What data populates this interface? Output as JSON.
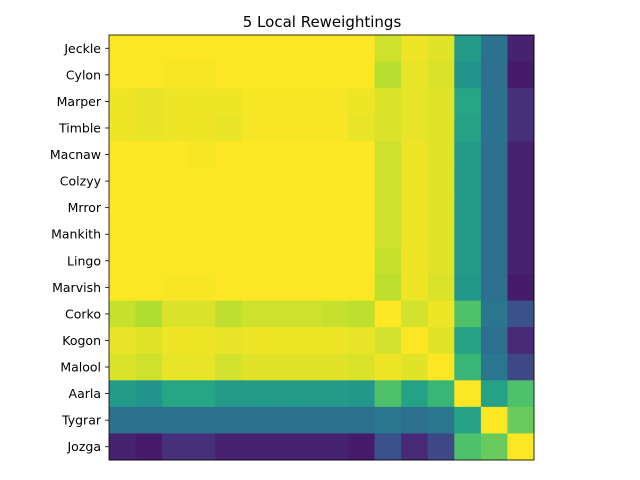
{
  "chart_data": {
    "type": "heatmap",
    "title": "5 Local Reweightings",
    "labels": [
      "Jeckle",
      "Cylon",
      "Marper",
      "Timble",
      "Macnaw",
      "Colzyy",
      "Mrror",
      "Mankith",
      "Lingo",
      "Marvish",
      "Corko",
      "Kogon",
      "Malool",
      "Aarla",
      "Tygrar",
      "Jozga"
    ],
    "colormap": "viridis",
    "value_range": [
      0,
      1
    ],
    "show_x_ticks": false,
    "values": [
      [
        1.0,
        1.0,
        1.0,
        1.0,
        1.0,
        1.0,
        1.0,
        1.0,
        1.0,
        1.0,
        0.93,
        0.98,
        0.96,
        0.55,
        0.38,
        0.1
      ],
      [
        1.0,
        1.0,
        0.99,
        0.99,
        1.0,
        1.0,
        1.0,
        1.0,
        1.0,
        1.0,
        0.9,
        0.97,
        0.95,
        0.52,
        0.37,
        0.08
      ],
      [
        0.98,
        0.97,
        0.98,
        0.98,
        0.98,
        0.99,
        0.99,
        0.99,
        0.99,
        0.98,
        0.95,
        0.97,
        0.96,
        0.6,
        0.38,
        0.14
      ],
      [
        0.98,
        0.97,
        0.98,
        0.98,
        0.97,
        0.99,
        0.99,
        0.99,
        0.99,
        0.97,
        0.95,
        0.97,
        0.96,
        0.58,
        0.38,
        0.14
      ],
      [
        1.0,
        1.0,
        1.0,
        0.99,
        1.0,
        1.0,
        1.0,
        1.0,
        1.0,
        1.0,
        0.93,
        0.98,
        0.96,
        0.55,
        0.37,
        0.1
      ],
      [
        1.0,
        1.0,
        1.0,
        1.0,
        1.0,
        1.0,
        1.0,
        1.0,
        1.0,
        1.0,
        0.93,
        0.98,
        0.96,
        0.55,
        0.37,
        0.1
      ],
      [
        1.0,
        1.0,
        1.0,
        1.0,
        1.0,
        1.0,
        1.0,
        1.0,
        1.0,
        1.0,
        0.93,
        0.98,
        0.96,
        0.55,
        0.37,
        0.1
      ],
      [
        1.0,
        1.0,
        1.0,
        1.0,
        1.0,
        1.0,
        1.0,
        1.0,
        1.0,
        1.0,
        0.93,
        0.98,
        0.96,
        0.55,
        0.37,
        0.1
      ],
      [
        1.0,
        1.0,
        1.0,
        1.0,
        1.0,
        1.0,
        1.0,
        1.0,
        1.0,
        1.0,
        0.92,
        0.98,
        0.96,
        0.55,
        0.37,
        0.1
      ],
      [
        1.0,
        1.0,
        0.99,
        0.99,
        1.0,
        1.0,
        1.0,
        1.0,
        1.0,
        1.0,
        0.91,
        0.98,
        0.95,
        0.53,
        0.37,
        0.08
      ],
      [
        0.92,
        0.89,
        0.95,
        0.95,
        0.91,
        0.93,
        0.93,
        0.93,
        0.92,
        0.91,
        1.0,
        0.94,
        0.98,
        0.72,
        0.4,
        0.25
      ],
      [
        0.97,
        0.96,
        0.98,
        0.98,
        0.97,
        0.98,
        0.98,
        0.98,
        0.98,
        0.97,
        0.94,
        1.0,
        0.96,
        0.58,
        0.37,
        0.12
      ],
      [
        0.95,
        0.93,
        0.97,
        0.97,
        0.94,
        0.96,
        0.96,
        0.96,
        0.96,
        0.95,
        0.98,
        0.96,
        1.0,
        0.67,
        0.4,
        0.22
      ],
      [
        0.55,
        0.52,
        0.6,
        0.6,
        0.55,
        0.55,
        0.55,
        0.55,
        0.55,
        0.53,
        0.72,
        0.58,
        0.67,
        1.0,
        0.58,
        0.72
      ],
      [
        0.38,
        0.37,
        0.38,
        0.38,
        0.37,
        0.37,
        0.37,
        0.37,
        0.37,
        0.37,
        0.4,
        0.37,
        0.4,
        0.58,
        1.0,
        0.77
      ],
      [
        0.1,
        0.08,
        0.14,
        0.14,
        0.1,
        0.1,
        0.1,
        0.1,
        0.1,
        0.08,
        0.25,
        0.12,
        0.22,
        0.72,
        0.77,
        1.0
      ]
    ]
  }
}
